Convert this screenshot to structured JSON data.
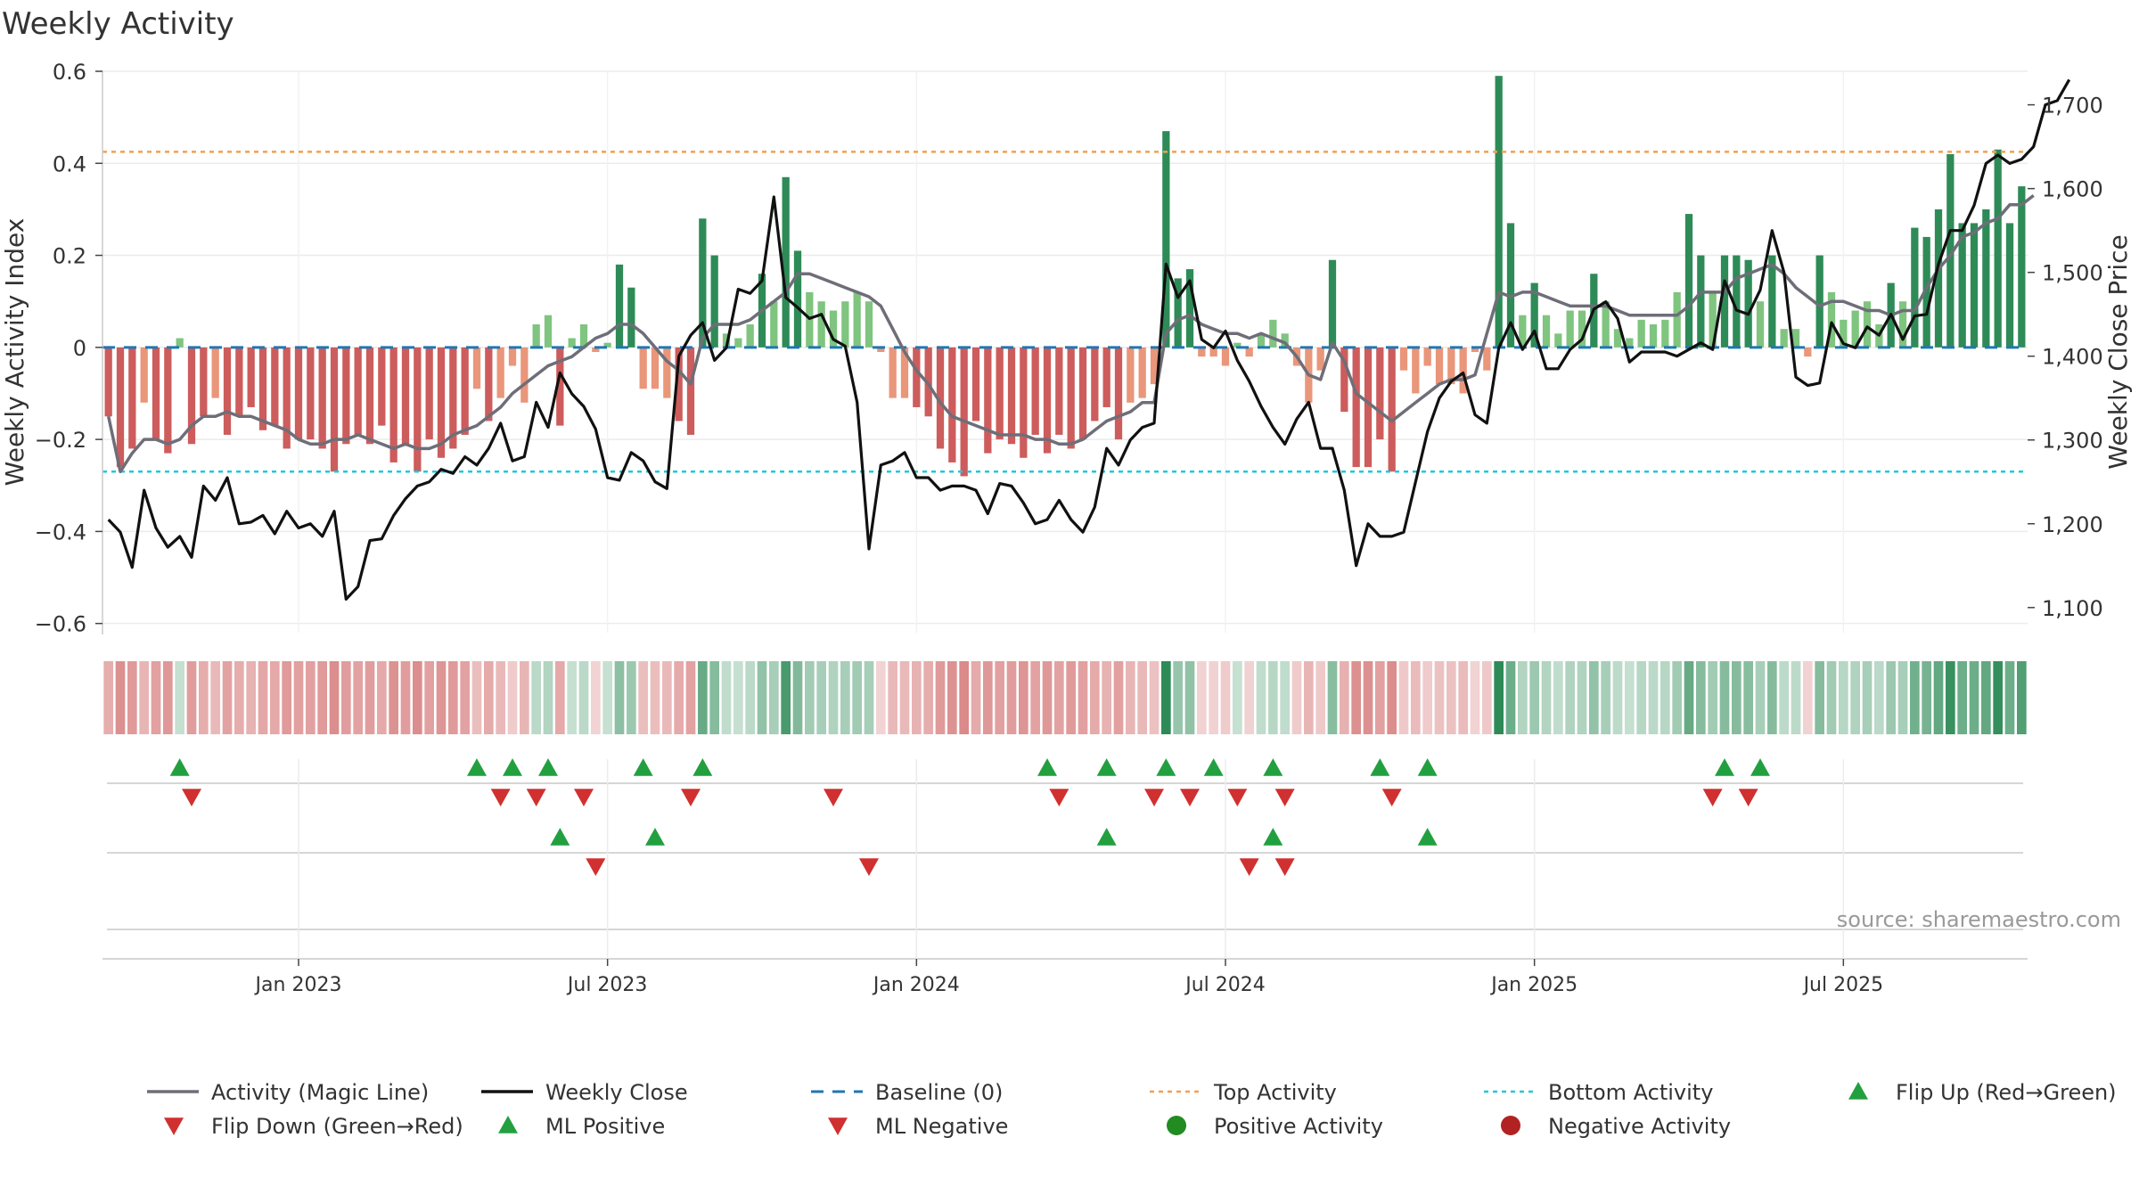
{
  "title": "Weekly Activity",
  "source": "source: sharemaestro.com",
  "colors": {
    "pos_strong": "#2e8b57",
    "pos_light": "#7fc47f",
    "neg_strong": "#cd5c5c",
    "neg_light": "#e9967a",
    "magic_line": "#6e6e78",
    "close_line": "#111111",
    "baseline": "#1f77b4",
    "top_line": "#f0a050",
    "bottom_line": "#22c8d8",
    "flip_up": "#22a040",
    "flip_down": "#d03030",
    "pos_dot": "#228b22",
    "neg_dot": "#b22222"
  },
  "chart_data": {
    "type": "bar",
    "title": "Weekly Activity",
    "ylabel": "Weekly Activity Index",
    "y2label": "Weekly Close Price",
    "ylim": [
      -0.62,
      0.6
    ],
    "y2lim": [
      1070,
      1740
    ],
    "yticks": [
      {
        "v": 0.6,
        "label": "0.6"
      },
      {
        "v": 0.4,
        "label": "0.4"
      },
      {
        "v": 0.2,
        "label": "0.2"
      },
      {
        "v": 0,
        "label": "0"
      },
      {
        "v": -0.2,
        "label": "−0.2"
      },
      {
        "v": -0.4,
        "label": "−0.4"
      },
      {
        "v": -0.6,
        "label": "−0.6"
      }
    ],
    "y2ticks": [
      {
        "v": 1700,
        "label": "1,700"
      },
      {
        "v": 1600,
        "label": "1,600"
      },
      {
        "v": 1500,
        "label": "1,500"
      },
      {
        "v": 1400,
        "label": "1,400"
      },
      {
        "v": 1300,
        "label": "1,300"
      },
      {
        "v": 1200,
        "label": "1,200"
      },
      {
        "v": 1100,
        "label": "1,100"
      }
    ],
    "xticks": [
      {
        "week": 16,
        "label": "Jan 2023"
      },
      {
        "week": 42,
        "label": "Jul 2023"
      },
      {
        "week": 68,
        "label": "Jan 2024"
      },
      {
        "week": 94,
        "label": "Jul 2024"
      },
      {
        "week": 120,
        "label": "Jan 2025"
      },
      {
        "week": 146,
        "label": "Jul 2025"
      }
    ],
    "top_activity": 0.425,
    "bottom_activity": -0.27,
    "activity": [
      -0.15,
      -0.26,
      -0.22,
      -0.12,
      -0.2,
      -0.23,
      0.02,
      -0.21,
      -0.15,
      -0.11,
      -0.19,
      -0.15,
      -0.13,
      -0.18,
      -0.17,
      -0.22,
      -0.2,
      -0.2,
      -0.22,
      -0.27,
      -0.21,
      -0.19,
      -0.21,
      -0.17,
      -0.25,
      -0.21,
      -0.27,
      -0.2,
      -0.24,
      -0.22,
      -0.19,
      -0.09,
      -0.16,
      -0.11,
      -0.04,
      -0.12,
      0.05,
      0.07,
      -0.17,
      0.02,
      0.05,
      -0.01,
      0.01,
      0.18,
      0.13,
      -0.09,
      -0.09,
      -0.11,
      -0.16,
      -0.19,
      0.28,
      0.2,
      0.03,
      0.02,
      0.05,
      0.16,
      0.1,
      0.37,
      0.21,
      0.12,
      0.1,
      0.08,
      0.1,
      0.12,
      0.1,
      -0.01,
      -0.11,
      -0.11,
      -0.13,
      -0.15,
      -0.22,
      -0.25,
      -0.28,
      -0.16,
      -0.23,
      -0.2,
      -0.21,
      -0.24,
      -0.19,
      -0.23,
      -0.19,
      -0.22,
      -0.2,
      -0.16,
      -0.13,
      -0.2,
      -0.12,
      -0.11,
      -0.08,
      0.47,
      0.15,
      0.17,
      -0.02,
      -0.02,
      -0.04,
      0.01,
      -0.02,
      0.03,
      0.06,
      0.03,
      -0.04,
      -0.12,
      -0.05,
      0.19,
      -0.14,
      -0.26,
      -0.26,
      -0.2,
      -0.27,
      -0.05,
      -0.1,
      -0.04,
      -0.08,
      -0.08,
      -0.1,
      -0.01,
      -0.05,
      0.59,
      0.27,
      0.07,
      0.14,
      0.07,
      0.03,
      0.08,
      0.08,
      0.16,
      0.1,
      0.04,
      0.02,
      0.06,
      0.05,
      0.06,
      0.12,
      0.29,
      0.2,
      0.12,
      0.2,
      0.2,
      0.19,
      0.1,
      0.2,
      0.04,
      0.04,
      -0.02,
      0.2,
      0.12,
      0.06,
      0.08,
      0.1,
      0.05,
      0.14,
      0.1,
      0.26,
      0.24,
      0.3,
      0.42,
      0.27,
      0.27,
      0.3,
      0.43,
      0.27,
      0.35
    ],
    "magic_line": [
      -0.15,
      -0.27,
      -0.23,
      -0.2,
      -0.2,
      -0.21,
      -0.2,
      -0.17,
      -0.15,
      -0.15,
      -0.14,
      -0.15,
      -0.15,
      -0.16,
      -0.17,
      -0.18,
      -0.2,
      -0.21,
      -0.21,
      -0.2,
      -0.2,
      -0.19,
      -0.2,
      -0.21,
      -0.22,
      -0.21,
      -0.22,
      -0.22,
      -0.21,
      -0.19,
      -0.18,
      -0.17,
      -0.15,
      -0.13,
      -0.1,
      -0.08,
      -0.06,
      -0.04,
      -0.03,
      -0.02,
      0.0,
      0.02,
      0.03,
      0.05,
      0.05,
      0.03,
      0.0,
      -0.03,
      -0.05,
      -0.08,
      0.02,
      0.05,
      0.05,
      0.05,
      0.06,
      0.08,
      0.1,
      0.12,
      0.16,
      0.16,
      0.15,
      0.14,
      0.13,
      0.12,
      0.11,
      0.09,
      0.04,
      -0.01,
      -0.05,
      -0.08,
      -0.12,
      -0.15,
      -0.16,
      -0.17,
      -0.18,
      -0.19,
      -0.19,
      -0.19,
      -0.2,
      -0.2,
      -0.21,
      -0.21,
      -0.2,
      -0.18,
      -0.16,
      -0.15,
      -0.14,
      -0.12,
      -0.12,
      0.03,
      0.06,
      0.07,
      0.05,
      0.04,
      0.03,
      0.03,
      0.02,
      0.03,
      0.02,
      0.01,
      -0.02,
      -0.06,
      -0.07,
      0.01,
      -0.03,
      -0.1,
      -0.12,
      -0.14,
      -0.16,
      -0.14,
      -0.12,
      -0.1,
      -0.08,
      -0.07,
      -0.07,
      -0.06,
      0.03,
      0.12,
      0.11,
      0.12,
      0.12,
      0.11,
      0.1,
      0.09,
      0.09,
      0.09,
      0.09,
      0.08,
      0.07,
      0.07,
      0.07,
      0.07,
      0.07,
      0.09,
      0.12,
      0.12,
      0.12,
      0.15,
      0.16,
      0.17,
      0.18,
      0.16,
      0.13,
      0.11,
      0.09,
      0.1,
      0.1,
      0.09,
      0.08,
      0.08,
      0.07,
      0.08,
      0.08,
      0.13,
      0.17,
      0.2,
      0.24,
      0.25,
      0.27,
      0.28,
      0.31,
      0.31,
      0.33
    ],
    "weekly_close": [
      1205,
      1190,
      1148,
      1240,
      1195,
      1172,
      1185,
      1160,
      1245,
      1228,
      1255,
      1200,
      1202,
      1210,
      1188,
      1215,
      1195,
      1200,
      1185,
      1215,
      1110,
      1125,
      1180,
      1182,
      1210,
      1230,
      1245,
      1250,
      1265,
      1260,
      1280,
      1270,
      1290,
      1320,
      1275,
      1280,
      1345,
      1315,
      1380,
      1355,
      1340,
      1313,
      1255,
      1252,
      1285,
      1275,
      1250,
      1242,
      1400,
      1425,
      1440,
      1395,
      1410,
      1480,
      1475,
      1490,
      1590,
      1470,
      1458,
      1445,
      1450,
      1420,
      1412,
      1345,
      1170,
      1270,
      1275,
      1285,
      1255,
      1255,
      1240,
      1245,
      1245,
      1240,
      1212,
      1248,
      1245,
      1225,
      1200,
      1205,
      1228,
      1205,
      1190,
      1220,
      1290,
      1270,
      1300,
      1315,
      1320,
      1510,
      1470,
      1490,
      1420,
      1410,
      1430,
      1395,
      1370,
      1340,
      1315,
      1295,
      1325,
      1345,
      1290,
      1290,
      1240,
      1150,
      1200,
      1185,
      1185,
      1190,
      1250,
      1310,
      1350,
      1370,
      1380,
      1330,
      1320,
      1410,
      1440,
      1408,
      1430,
      1385,
      1385,
      1408,
      1420,
      1456,
      1465,
      1445,
      1393,
      1405,
      1405,
      1405,
      1400,
      1408,
      1416,
      1408,
      1490,
      1455,
      1450,
      1479,
      1550,
      1500,
      1375,
      1365,
      1368,
      1440,
      1415,
      1410,
      1435,
      1425,
      1450,
      1420,
      1448,
      1450,
      1510,
      1550,
      1550,
      1580,
      1630,
      1640,
      1630,
      1635,
      1650,
      1700,
      1705,
      1730
    ],
    "markers": {
      "flip_up": [
        6,
        31,
        34,
        37,
        45,
        50,
        79,
        84,
        89,
        93,
        98,
        107,
        111,
        136,
        139
      ],
      "flip_down": [
        7,
        33,
        36,
        40,
        49,
        61,
        80,
        88,
        91,
        95,
        99,
        108,
        135,
        138
      ],
      "ml_positive": [
        38,
        46,
        84,
        98,
        111
      ],
      "ml_negative": [
        41,
        64,
        96,
        99
      ]
    }
  },
  "legend": [
    {
      "label": "Activity (Magic Line)",
      "symbol": "solid-line",
      "color": "#6e6e78"
    },
    {
      "label": "Weekly Close",
      "symbol": "solid-line",
      "color": "#111111"
    },
    {
      "label": "Baseline (0)",
      "symbol": "dashed-line",
      "color": "#1f77b4"
    },
    {
      "label": "Top Activity",
      "symbol": "dotted-line",
      "color": "#f0a050"
    },
    {
      "label": "Bottom Activity",
      "symbol": "dotted-line",
      "color": "#22c8d8"
    },
    {
      "label": "Flip Up (Red→Green)",
      "symbol": "triangle-up",
      "color": "#22a040"
    },
    {
      "label": "Flip Down (Green→Red)",
      "symbol": "triangle-down",
      "color": "#d03030"
    },
    {
      "label": "ML Positive",
      "symbol": "triangle-up",
      "color": "#22a040"
    },
    {
      "label": "ML Negative",
      "symbol": "triangle-down",
      "color": "#d03030"
    },
    {
      "label": "Positive Activity",
      "symbol": "circle",
      "color": "#228b22"
    },
    {
      "label": "Negative Activity",
      "symbol": "circle",
      "color": "#b22222"
    }
  ]
}
